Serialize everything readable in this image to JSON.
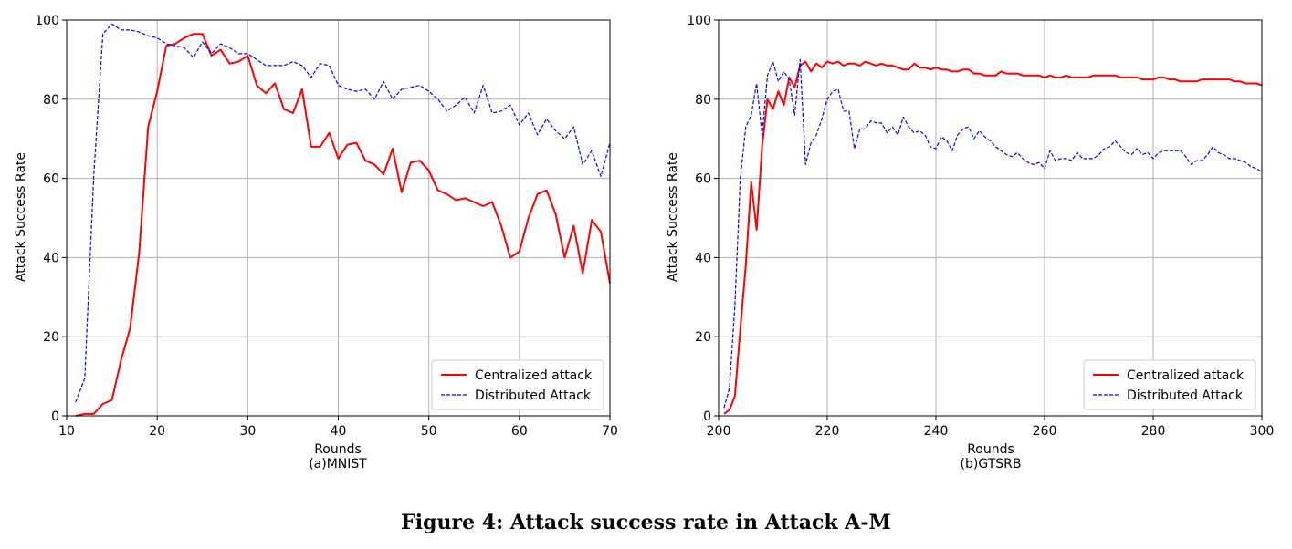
{
  "caption": "Figure 4: Attack success rate in Attack A-M",
  "chart_data": [
    {
      "type": "line",
      "subtitle": "(a)MNIST",
      "xlabel": "Rounds",
      "ylabel": "Attack Success Rate",
      "xlim": [
        10,
        70
      ],
      "ylim": [
        0,
        100
      ],
      "xticks": [
        10,
        20,
        30,
        40,
        50,
        60,
        70
      ],
      "yticks": [
        0,
        20,
        40,
        60,
        80,
        100
      ],
      "grid": true,
      "legend_position": "lower-right",
      "series": [
        {
          "name": "Centralized attack",
          "color": "#ff0000",
          "style": "solid",
          "x": [
            11,
            12,
            13,
            14,
            15,
            16,
            17,
            18,
            19,
            20,
            21,
            22,
            23,
            24,
            25,
            26,
            27,
            28,
            29,
            30,
            31,
            32,
            33,
            34,
            35,
            36,
            37,
            38,
            39,
            40,
            41,
            42,
            43,
            44,
            45,
            46,
            47,
            48,
            49,
            50,
            51,
            52,
            53,
            54,
            55,
            56,
            57,
            58,
            59,
            60,
            61,
            62,
            63,
            64,
            65,
            66,
            67,
            68,
            69,
            70
          ],
          "y": [
            0,
            0.5,
            0.5,
            3,
            4,
            14,
            22,
            41,
            73,
            82,
            93.5,
            94,
            95.5,
            96.5,
            96.5,
            91,
            92.5,
            89,
            89.5,
            91,
            83.5,
            81.5,
            84,
            77.5,
            76.5,
            82.5,
            68,
            68,
            71.5,
            65,
            68.5,
            69,
            64.5,
            63.5,
            61,
            67.5,
            56.5,
            64,
            64.5,
            62,
            57,
            56,
            54.5,
            55,
            54,
            53,
            54,
            48,
            40,
            41.5,
            50,
            56,
            57,
            51,
            40,
            48,
            36,
            49.5,
            46.5,
            33.5
          ]
        },
        {
          "name": "Distributed Attack",
          "color": "#0000ff",
          "style": "dashed",
          "x": [
            11,
            12,
            13,
            14,
            15,
            16,
            17,
            18,
            19,
            20,
            21,
            22,
            23,
            24,
            25,
            26,
            27,
            28,
            29,
            30,
            31,
            32,
            33,
            34,
            35,
            36,
            37,
            38,
            39,
            40,
            41,
            42,
            43,
            44,
            45,
            46,
            47,
            48,
            49,
            50,
            51,
            52,
            53,
            54,
            55,
            56,
            57,
            58,
            59,
            60,
            61,
            62,
            63,
            64,
            65,
            66,
            67,
            68,
            69,
            70
          ],
          "y": [
            3.5,
            9.5,
            61,
            96.5,
            99,
            97.5,
            97.5,
            97,
            96,
            95.5,
            94,
            93.5,
            93,
            90.5,
            94.5,
            91.5,
            94,
            93,
            91.5,
            91.5,
            90,
            88.5,
            88.5,
            88.5,
            89.5,
            88.5,
            85.5,
            89,
            88.5,
            83.5,
            82.5,
            82,
            82.5,
            80,
            84.5,
            80,
            82.5,
            83,
            83.5,
            82,
            80,
            77,
            78.5,
            80.5,
            76.5,
            83.5,
            76.5,
            77,
            78.5,
            73.5,
            76.5,
            71,
            75,
            72,
            70,
            73,
            63.5,
            67,
            60.5,
            69
          ]
        }
      ]
    },
    {
      "type": "line",
      "subtitle": "(b)GTSRB",
      "xlabel": "Rounds",
      "ylabel": "Attack Success Rate",
      "xlim": [
        200,
        300
      ],
      "ylim": [
        0,
        100
      ],
      "xticks": [
        200,
        220,
        240,
        260,
        280,
        300
      ],
      "yticks": [
        0,
        20,
        40,
        60,
        80,
        100
      ],
      "grid": true,
      "legend_position": "lower-right",
      "series": [
        {
          "name": "Centralized attack",
          "color": "#ff0000",
          "style": "solid",
          "x": [
            201,
            202,
            203,
            204,
            205,
            206,
            207,
            208,
            209,
            210,
            211,
            212,
            213,
            214,
            215,
            216,
            217,
            218,
            219,
            220,
            221,
            222,
            223,
            224,
            225,
            226,
            227,
            228,
            229,
            230,
            231,
            232,
            233,
            234,
            235,
            236,
            237,
            238,
            239,
            240,
            241,
            242,
            243,
            244,
            245,
            246,
            247,
            248,
            249,
            250,
            251,
            252,
            253,
            254,
            255,
            256,
            257,
            258,
            259,
            260,
            261,
            262,
            263,
            264,
            265,
            266,
            267,
            268,
            269,
            270,
            271,
            272,
            273,
            274,
            275,
            276,
            277,
            278,
            279,
            280,
            281,
            282,
            283,
            284,
            285,
            286,
            287,
            288,
            289,
            290,
            291,
            292,
            293,
            294,
            295,
            296,
            297,
            298,
            299,
            300
          ],
          "y": [
            0.5,
            1.5,
            5,
            22,
            38,
            59,
            47,
            68,
            80,
            77.5,
            82,
            78.5,
            85.5,
            83,
            88.5,
            89.5,
            87,
            89,
            88,
            89.5,
            89,
            89.5,
            88.5,
            89,
            89,
            88.5,
            89.5,
            89,
            88.5,
            89,
            88.5,
            88.5,
            88,
            87.5,
            87.5,
            89,
            88,
            88,
            87.5,
            88,
            87.5,
            87.5,
            87,
            87,
            87.5,
            87.5,
            86.5,
            86.5,
            86,
            86,
            86,
            87,
            86.5,
            86.5,
            86.5,
            86,
            86,
            86,
            86,
            85.5,
            86,
            85.5,
            85.5,
            86,
            85.5,
            85.5,
            85.5,
            85.5,
            86,
            86,
            86,
            86,
            86,
            85.5,
            85.5,
            85.5,
            85.5,
            85,
            85,
            85,
            85.5,
            85.5,
            85,
            85,
            84.5,
            84.5,
            84.5,
            84.5,
            85,
            85,
            85,
            85,
            85,
            85,
            84.5,
            84.5,
            84,
            84,
            84,
            83.5
          ]
        },
        {
          "name": "Distributed Attack",
          "color": "#0000ff",
          "style": "dashed",
          "x": [
            201,
            202,
            203,
            204,
            205,
            206,
            207,
            208,
            209,
            210,
            211,
            212,
            213,
            214,
            215,
            216,
            217,
            218,
            219,
            220,
            221,
            222,
            223,
            224,
            225,
            226,
            227,
            228,
            229,
            230,
            231,
            232,
            233,
            234,
            235,
            236,
            237,
            238,
            239,
            240,
            241,
            242,
            243,
            244,
            245,
            246,
            247,
            248,
            249,
            250,
            251,
            252,
            253,
            254,
            255,
            256,
            257,
            258,
            259,
            260,
            261,
            262,
            263,
            264,
            265,
            266,
            267,
            268,
            269,
            270,
            271,
            272,
            273,
            274,
            275,
            276,
            277,
            278,
            279,
            280,
            281,
            282,
            283,
            284,
            285,
            286,
            287,
            288,
            289,
            290,
            291,
            292,
            293,
            294,
            295,
            296,
            297,
            298,
            299,
            300
          ],
          "y": [
            2,
            7,
            28,
            60,
            73,
            76,
            84,
            71,
            86,
            89.5,
            84.5,
            87,
            85,
            76,
            90,
            63.5,
            69,
            71,
            75,
            80,
            82,
            82.5,
            77,
            77,
            67.5,
            72.5,
            72.5,
            74.5,
            74,
            74,
            71.5,
            73,
            71,
            75.5,
            73,
            71.5,
            72,
            71,
            68,
            67.5,
            70.5,
            69.5,
            67,
            71,
            72.5,
            73,
            70,
            72,
            70.5,
            69.5,
            68,
            67,
            66,
            65.5,
            66.5,
            65,
            64,
            63.5,
            64,
            62.5,
            67,
            64.5,
            65,
            65,
            64.5,
            66.5,
            65,
            65,
            65,
            66,
            67.5,
            68,
            69.5,
            68,
            66.5,
            66,
            67.5,
            66,
            66.5,
            65,
            66.5,
            67,
            67,
            67,
            67,
            65.5,
            63.5,
            64.5,
            64.5,
            66,
            68,
            66.5,
            66,
            65,
            65,
            64.5,
            64,
            63,
            62.5,
            61.5
          ]
        }
      ]
    }
  ]
}
